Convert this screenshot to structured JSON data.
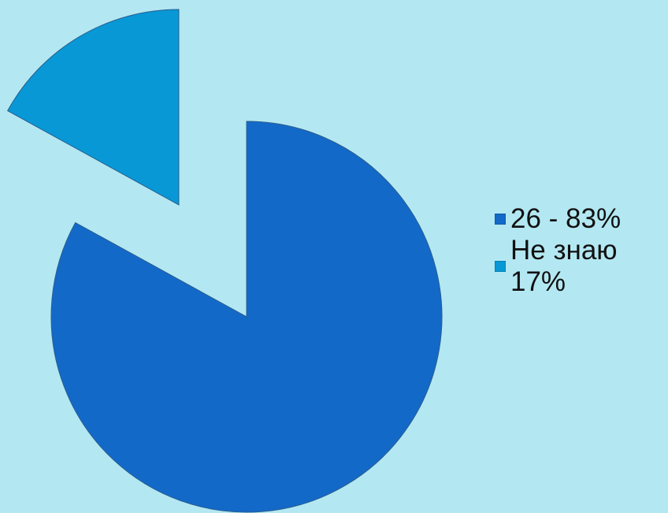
{
  "colors": {
    "background": "#b3e8f2",
    "slice_main": "#1369c8",
    "slice_secondary": "#0898d6",
    "slice_stroke": "#2a5e8f"
  },
  "chart_data": {
    "type": "pie",
    "title": "",
    "slices": [
      {
        "label": "26 - 83%",
        "value": 83,
        "color": "#1369c8",
        "exploded": false
      },
      {
        "label": "Не знаю 17%",
        "value": 17,
        "color": "#0898d6",
        "exploded": true
      }
    ],
    "start_angle_deg": 0,
    "direction": "clockwise",
    "legend_position": "right"
  }
}
